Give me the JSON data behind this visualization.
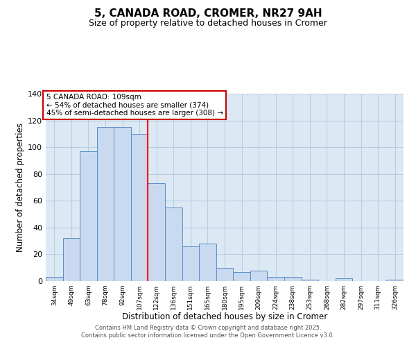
{
  "title": "5, CANADA ROAD, CROMER, NR27 9AH",
  "subtitle": "Size of property relative to detached houses in Cromer",
  "xlabel": "Distribution of detached houses by size in Cromer",
  "ylabel": "Number of detached properties",
  "categories": [
    "34sqm",
    "49sqm",
    "63sqm",
    "78sqm",
    "92sqm",
    "107sqm",
    "122sqm",
    "136sqm",
    "151sqm",
    "165sqm",
    "180sqm",
    "195sqm",
    "209sqm",
    "224sqm",
    "238sqm",
    "253sqm",
    "268sqm",
    "282sqm",
    "297sqm",
    "311sqm",
    "326sqm"
  ],
  "values": [
    3,
    32,
    97,
    115,
    115,
    110,
    73,
    55,
    26,
    28,
    10,
    7,
    8,
    3,
    3,
    1,
    0,
    2,
    0,
    0,
    1
  ],
  "bar_color": "#c9d9f0",
  "bar_edge_color": "#5b8ec4",
  "vline_color": "red",
  "vline_index": 5,
  "ylim": [
    0,
    140
  ],
  "yticks": [
    0,
    20,
    40,
    60,
    80,
    100,
    120,
    140
  ],
  "annotation_title": "5 CANADA ROAD: 109sqm",
  "annotation_line1": "← 54% of detached houses are smaller (374)",
  "annotation_line2": "45% of semi-detached houses are larger (308) →",
  "annotation_box_facecolor": "#ffffff",
  "annotation_box_edgecolor": "#cc0000",
  "footer1": "Contains HM Land Registry data © Crown copyright and database right 2025.",
  "footer2": "Contains public sector information licensed under the Open Government Licence v3.0.",
  "plot_bg_color": "#dce9f5",
  "fig_bg_color": "#ffffff",
  "grid_color": "#b8cde0",
  "title_fontsize": 11,
  "subtitle_fontsize": 9,
  "bar_width": 1.0
}
